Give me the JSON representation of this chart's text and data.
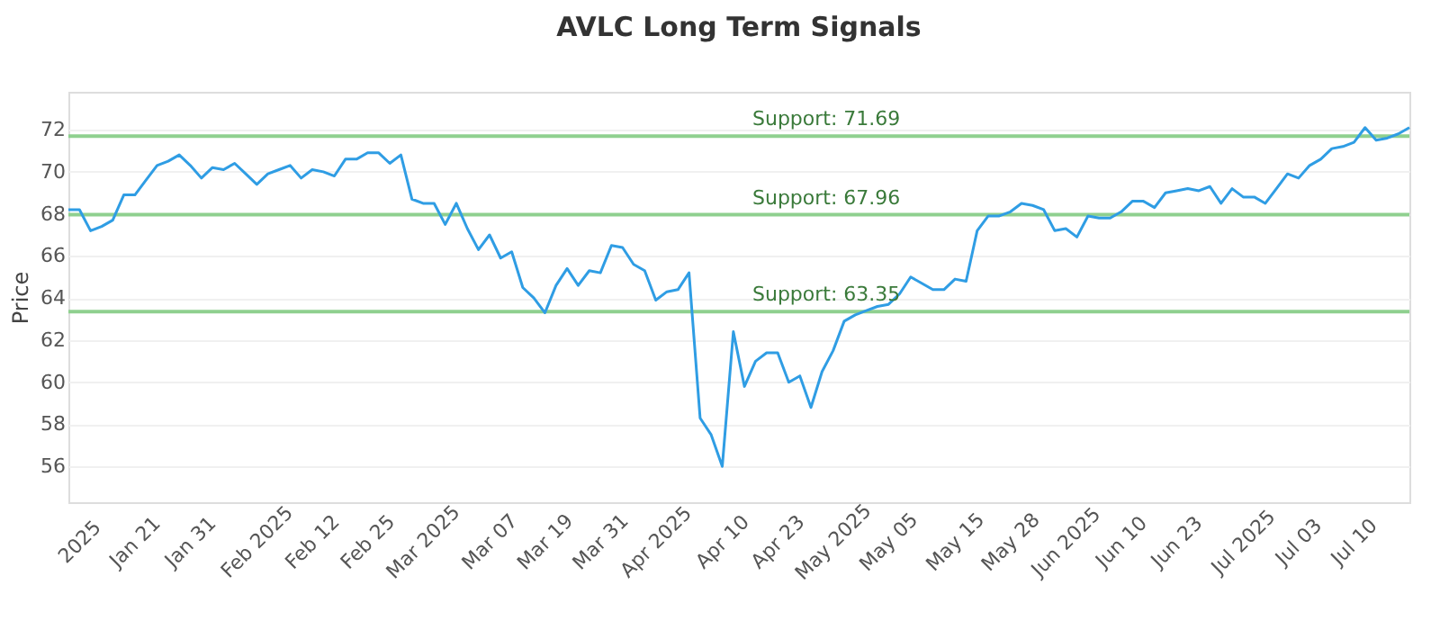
{
  "chart_data": {
    "type": "line",
    "title": "AVLC Long Term Signals",
    "ylabel": "Price",
    "categories": [
      null,
      "2025",
      null,
      null,
      null,
      null,
      "Jan 21",
      null,
      null,
      null,
      null,
      "Jan 31",
      null,
      null,
      null,
      null,
      null,
      "Feb 2025",
      null,
      null,
      null,
      null,
      "Feb 12",
      null,
      null,
      null,
      null,
      "Feb 25",
      null,
      null,
      null,
      null,
      "Mar 2025",
      null,
      null,
      null,
      null,
      null,
      "Mar 07",
      null,
      null,
      null,
      null,
      "Mar 19",
      null,
      null,
      null,
      null,
      "Mar 31",
      null,
      null,
      null,
      null,
      "Apr 2025",
      null,
      null,
      null,
      null,
      null,
      "Apr 10",
      null,
      null,
      null,
      null,
      "Apr 23",
      null,
      null,
      null,
      null,
      "May 2025",
      null,
      null,
      null,
      null,
      "May 05",
      null,
      null,
      null,
      null,
      null,
      "May 15",
      null,
      null,
      null,
      null,
      "May 28",
      null,
      null,
      null,
      null,
      "Jun 2025",
      null,
      null,
      null,
      null,
      "Jun 10",
      null,
      null,
      null,
      null,
      "Jun 23",
      null,
      null,
      null,
      null,
      null,
      "Jul 2025",
      null,
      null,
      null,
      null,
      "Jul 03",
      null,
      null,
      null,
      null,
      "Jul 10",
      null,
      null,
      null,
      null,
      null
    ],
    "series": [
      {
        "color": "#2f9de4",
        "values": [
          68.2,
          68.2,
          67.2,
          67.4,
          67.7,
          68.9,
          68.9,
          69.6,
          70.3,
          70.5,
          70.8,
          70.3,
          69.7,
          70.2,
          70.1,
          70.4,
          69.9,
          69.4,
          69.9,
          70.1,
          70.3,
          69.7,
          70.1,
          70.0,
          69.8,
          70.6,
          70.6,
          70.9,
          70.9,
          70.4,
          70.8,
          68.7,
          68.5,
          68.5,
          67.5,
          68.5,
          67.3,
          66.3,
          67.0,
          65.9,
          66.2,
          64.5,
          64.0,
          63.3,
          64.6,
          65.4,
          64.6,
          65.3,
          65.2,
          66.5,
          66.4,
          65.6,
          65.3,
          63.9,
          64.3,
          64.4,
          65.2,
          58.3,
          57.5,
          56.0,
          62.4,
          59.8,
          61.0,
          61.4,
          61.4,
          60.0,
          60.3,
          58.8,
          60.5,
          61.5,
          62.9,
          63.2,
          63.4,
          63.6,
          63.7,
          64.2,
          65.0,
          64.7,
          64.4,
          64.4,
          64.9,
          64.8,
          67.2,
          67.9,
          67.9,
          68.1,
          68.5,
          68.4,
          68.2,
          67.2,
          67.3,
          66.9,
          67.9,
          67.8,
          67.8,
          68.1,
          68.6,
          68.6,
          68.3,
          69.0,
          69.1,
          69.2,
          69.1,
          69.3,
          68.5,
          69.2,
          68.8,
          68.8,
          68.5,
          69.2,
          69.9,
          69.7,
          70.3,
          70.6,
          71.1,
          71.2,
          71.4,
          72.1,
          71.5,
          71.6,
          71.8,
          72.1
        ]
      }
    ],
    "ylim": [
      54.3,
      73.8
    ],
    "yticks": [
      56,
      58,
      60,
      62,
      64,
      66,
      68,
      70,
      72
    ],
    "grid": "y",
    "ref_lines": [
      {
        "axis": "y",
        "value": 71.69,
        "label": "Support: 71.69",
        "color": "#8fd08f"
      },
      {
        "axis": "y",
        "value": 67.96,
        "label": "Support: 67.96",
        "color": "#8fd08f"
      },
      {
        "axis": "y",
        "value": 63.35,
        "label": "Support: 63.35",
        "color": "#8fd08f"
      }
    ]
  }
}
